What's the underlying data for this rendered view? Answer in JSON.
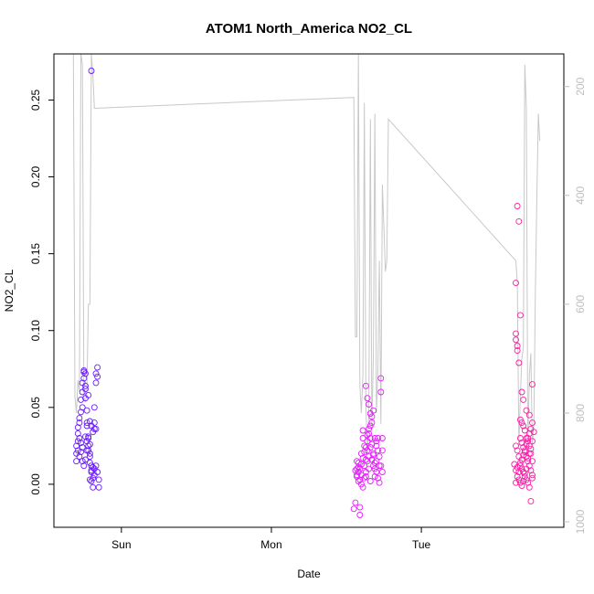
{
  "chart_data": {
    "type": "scatter",
    "title": "ATOM1 North_America NO2_CL",
    "xlabel": "Date",
    "ylabel": "NO2_CL",
    "x_axis": {
      "ticks": [
        {
          "value": 1.0,
          "label": "Sun"
        },
        {
          "value": 2.0,
          "label": "Mon"
        },
        {
          "value": 3.0,
          "label": "Tue"
        }
      ],
      "range": [
        0.55,
        3.95
      ]
    },
    "y_axis": {
      "ticks": [
        0.0,
        0.05,
        0.1,
        0.15,
        0.2,
        0.25
      ],
      "tick_labels": [
        "0.00",
        "0.05",
        "0.10",
        "0.15",
        "0.20",
        "0.25"
      ],
      "range": [
        -0.028,
        0.28
      ]
    },
    "secondary_y_axis": {
      "ticks": [
        200,
        400,
        600,
        800,
        1000
      ],
      "tick_labels": [
        "200",
        "400",
        "600",
        "800",
        "1000"
      ],
      "range": [
        1010,
        140
      ],
      "color": "#bebebe",
      "note": "pressure-like altitude axis, inverted"
    },
    "colors": {
      "group1": "#6a1bff",
      "group2": "#e61bff",
      "group3": "#ff1ba6",
      "line": "#c8c8c8"
    },
    "secondary_series": {
      "name": "",
      "color": "#c8c8c8",
      "points": [
        [
          0.68,
          140
        ],
        [
          0.69,
          770
        ],
        [
          0.7,
          800
        ],
        [
          0.71,
          740
        ],
        [
          0.72,
          760
        ],
        [
          0.73,
          140
        ],
        [
          0.74,
          160
        ],
        [
          0.75,
          770
        ],
        [
          0.76,
          780
        ],
        [
          0.77,
          760
        ],
        [
          0.78,
          600
        ],
        [
          0.79,
          600
        ],
        [
          0.8,
          140
        ],
        [
          0.81,
          180
        ],
        [
          0.82,
          240
        ],
        [
          2.55,
          220
        ],
        [
          2.56,
          660
        ],
        [
          2.57,
          660
        ],
        [
          2.58,
          140
        ],
        [
          2.59,
          750
        ],
        [
          2.6,
          800
        ],
        [
          2.61,
          730
        ],
        [
          2.62,
          230
        ],
        [
          2.63,
          790
        ],
        [
          2.64,
          870
        ],
        [
          2.65,
          800
        ],
        [
          2.66,
          260
        ],
        [
          2.67,
          830
        ],
        [
          2.68,
          690
        ],
        [
          2.69,
          250
        ],
        [
          2.7,
          800
        ],
        [
          2.71,
          720
        ],
        [
          2.72,
          520
        ],
        [
          2.73,
          820
        ],
        [
          2.74,
          380
        ],
        [
          2.75,
          460
        ],
        [
          2.76,
          540
        ],
        [
          2.77,
          520
        ],
        [
          2.78,
          260
        ],
        [
          3.63,
          520
        ],
        [
          3.64,
          560
        ],
        [
          3.65,
          860
        ],
        [
          3.66,
          770
        ],
        [
          3.67,
          700
        ],
        [
          3.68,
          680
        ],
        [
          3.69,
          160
        ],
        [
          3.7,
          240
        ],
        [
          3.71,
          860
        ],
        [
          3.72,
          730
        ],
        [
          3.73,
          690
        ],
        [
          3.74,
          860
        ],
        [
          3.75,
          820
        ],
        [
          3.76,
          580
        ],
        [
          3.77,
          400
        ],
        [
          3.78,
          250
        ],
        [
          3.79,
          300
        ]
      ]
    },
    "series": [
      {
        "name": "",
        "color": "#6a1bff",
        "points": [
          [
            0.7,
            0.02
          ],
          [
            0.71,
            0.028
          ],
          [
            0.71,
            0.033
          ],
          [
            0.72,
            0.018
          ],
          [
            0.73,
            0.021
          ],
          [
            0.72,
            0.04
          ],
          [
            0.73,
            0.055
          ],
          [
            0.74,
            0.06
          ],
          [
            0.74,
            0.066
          ],
          [
            0.75,
            0.069
          ],
          [
            0.75,
            0.073
          ],
          [
            0.76,
            0.072
          ],
          [
            0.76,
            0.062
          ],
          [
            0.76,
            0.056
          ],
          [
            0.77,
            0.048
          ],
          [
            0.77,
            0.04
          ],
          [
            0.77,
            0.038
          ],
          [
            0.78,
            0.03
          ],
          [
            0.78,
            0.025
          ],
          [
            0.78,
            0.022
          ],
          [
            0.79,
            0.018
          ],
          [
            0.79,
            0.014
          ],
          [
            0.8,
            0.008
          ],
          [
            0.8,
            0.012
          ],
          [
            0.8,
            0.002
          ],
          [
            0.81,
            -0.002
          ],
          [
            0.81,
            0.004
          ],
          [
            0.82,
            0.01
          ],
          [
            0.82,
            0.036
          ],
          [
            0.82,
            0.05
          ],
          [
            0.83,
            0.066
          ],
          [
            0.83,
            0.072
          ],
          [
            0.84,
            0.076
          ],
          [
            0.84,
            0.008
          ],
          [
            0.85,
            0.003
          ],
          [
            0.85,
            -0.002
          ],
          [
            0.8,
            0.269
          ],
          [
            0.75,
            0.074
          ],
          [
            0.78,
            0.031
          ],
          [
            0.79,
            0.026
          ],
          [
            0.73,
            0.027
          ],
          [
            0.74,
            0.015
          ],
          [
            0.72,
            0.03
          ],
          [
            0.8,
            0.038
          ],
          [
            0.81,
            0.034
          ],
          [
            0.77,
            0.022
          ],
          [
            0.76,
            0.016
          ],
          [
            0.75,
            0.012
          ],
          [
            0.71,
            0.022
          ],
          [
            0.7,
            0.025
          ],
          [
            0.73,
            0.047
          ],
          [
            0.79,
            0.041
          ],
          [
            0.82,
            0.04
          ],
          [
            0.83,
            0.036
          ],
          [
            0.84,
            0.07
          ],
          [
            0.78,
            0.058
          ],
          [
            0.76,
            0.064
          ],
          [
            0.74,
            0.05
          ],
          [
            0.71,
            0.037
          ],
          [
            0.72,
            0.043
          ],
          [
            0.79,
            0.003
          ],
          [
            0.8,
            0.009
          ],
          [
            0.81,
            0.011
          ],
          [
            0.7,
            0.015
          ],
          [
            0.74,
            0.024
          ],
          [
            0.76,
            0.031
          ],
          [
            0.77,
            0.028
          ],
          [
            0.79,
            0.02
          ],
          [
            0.83,
            0.012
          ],
          [
            0.82,
            0.006
          ]
        ]
      },
      {
        "name": "",
        "color": "#e61bff",
        "points": [
          [
            2.55,
            -0.016
          ],
          [
            2.56,
            -0.012
          ],
          [
            2.57,
            0.005
          ],
          [
            2.57,
            0.01
          ],
          [
            2.58,
            0.002
          ],
          [
            2.58,
            0.014
          ],
          [
            2.59,
            -0.015
          ],
          [
            2.59,
            -0.02
          ],
          [
            2.6,
            0.006
          ],
          [
            2.6,
            0.02
          ],
          [
            2.61,
            0.03
          ],
          [
            2.61,
            0.035
          ],
          [
            2.62,
            0.025
          ],
          [
            2.62,
            0.012
          ],
          [
            2.63,
            0.008
          ],
          [
            2.63,
            0.005
          ],
          [
            2.64,
            0.015
          ],
          [
            2.64,
            0.022
          ],
          [
            2.65,
            0.018
          ],
          [
            2.65,
            0.01
          ],
          [
            2.66,
            0.002
          ],
          [
            2.66,
            0.03
          ],
          [
            2.67,
            0.044
          ],
          [
            2.67,
            0.04
          ],
          [
            2.68,
            0.048
          ],
          [
            2.68,
            0.02
          ],
          [
            2.69,
            0.01
          ],
          [
            2.69,
            0.005
          ],
          [
            2.7,
            0.015
          ],
          [
            2.7,
            0.025
          ],
          [
            2.71,
            0.03
          ],
          [
            2.71,
            0.022
          ],
          [
            2.72,
            0.018
          ],
          [
            2.72,
            0.012
          ],
          [
            2.73,
            0.06
          ],
          [
            2.73,
            0.069
          ],
          [
            2.74,
            0.03
          ],
          [
            2.74,
            0.022
          ],
          [
            2.63,
            0.064
          ],
          [
            2.64,
            0.056
          ],
          [
            2.65,
            0.052
          ],
          [
            2.66,
            0.046
          ],
          [
            2.57,
            0.015
          ],
          [
            2.58,
            0.008
          ],
          [
            2.59,
            0.01
          ],
          [
            2.6,
            0.0
          ],
          [
            2.61,
            -0.002
          ],
          [
            2.62,
            0.004
          ],
          [
            2.63,
            0.016
          ],
          [
            2.64,
            0.028
          ],
          [
            2.65,
            0.033
          ],
          [
            2.66,
            0.038
          ],
          [
            2.67,
            0.026
          ],
          [
            2.68,
            0.019
          ],
          [
            2.69,
            0.014
          ],
          [
            2.7,
            0.008
          ],
          [
            2.71,
            0.004
          ],
          [
            2.72,
            0.001
          ],
          [
            2.73,
            0.012
          ],
          [
            2.74,
            0.008
          ],
          [
            2.56,
            0.009
          ],
          [
            2.57,
            0.006
          ],
          [
            2.58,
            0.011
          ],
          [
            2.59,
            0.003
          ],
          [
            2.6,
            0.013
          ],
          [
            2.61,
            0.017
          ],
          [
            2.62,
            0.021
          ],
          [
            2.63,
            0.024
          ],
          [
            2.64,
            0.032
          ],
          [
            2.65,
            0.036
          ],
          [
            2.66,
            0.024
          ],
          [
            2.67,
            0.016
          ],
          [
            2.68,
            0.012
          ],
          [
            2.69,
            0.03
          ],
          [
            2.7,
            0.028
          ]
        ]
      },
      {
        "name": "",
        "color": "#ff1ba6",
        "points": [
          [
            3.63,
            0.131
          ],
          [
            3.64,
            0.181
          ],
          [
            3.65,
            0.171
          ],
          [
            3.66,
            0.11
          ],
          [
            3.63,
            0.098
          ],
          [
            3.63,
            0.094
          ],
          [
            3.64,
            0.09
          ],
          [
            3.64,
            0.087
          ],
          [
            3.65,
            0.079
          ],
          [
            3.67,
            0.06
          ],
          [
            3.68,
            0.055
          ],
          [
            3.7,
            0.048
          ],
          [
            3.72,
            0.045
          ],
          [
            3.74,
            0.065
          ],
          [
            3.66,
            0.042
          ],
          [
            3.67,
            0.04
          ],
          [
            3.68,
            0.038
          ],
          [
            3.69,
            0.035
          ],
          [
            3.7,
            0.03
          ],
          [
            3.71,
            0.028
          ],
          [
            3.72,
            0.025
          ],
          [
            3.73,
            0.02
          ],
          [
            3.74,
            0.015
          ],
          [
            3.63,
            0.025
          ],
          [
            3.64,
            0.022
          ],
          [
            3.65,
            0.018
          ],
          [
            3.66,
            0.014
          ],
          [
            3.67,
            0.01
          ],
          [
            3.68,
            0.008
          ],
          [
            3.69,
            0.005
          ],
          [
            3.7,
            0.003
          ],
          [
            3.71,
            0.001
          ],
          [
            3.72,
            -0.002
          ],
          [
            3.73,
            -0.011
          ],
          [
            3.74,
            0.004
          ],
          [
            3.63,
            0.001
          ],
          [
            3.64,
            0.005
          ],
          [
            3.65,
            0.008
          ],
          [
            3.66,
            0.012
          ],
          [
            3.67,
            0.016
          ],
          [
            3.68,
            0.019
          ],
          [
            3.69,
            0.022
          ],
          [
            3.7,
            0.026
          ],
          [
            3.71,
            0.03
          ],
          [
            3.72,
            0.033
          ],
          [
            3.73,
            0.036
          ],
          [
            3.74,
            0.04
          ],
          [
            3.66,
            0.03
          ],
          [
            3.67,
            0.027
          ],
          [
            3.68,
            0.024
          ],
          [
            3.69,
            0.021
          ],
          [
            3.7,
            0.018
          ],
          [
            3.71,
            0.015
          ],
          [
            3.72,
            0.012
          ],
          [
            3.73,
            0.009
          ],
          [
            3.74,
            0.006
          ],
          [
            3.62,
            0.013
          ],
          [
            3.63,
            0.009
          ],
          [
            3.64,
            0.011
          ],
          [
            3.65,
            0.003
          ],
          [
            3.66,
            0.001
          ],
          [
            3.67,
            -0.001
          ],
          [
            3.68,
            0.002
          ],
          [
            3.69,
            0.007
          ],
          [
            3.7,
            0.01
          ],
          [
            3.71,
            0.017
          ],
          [
            3.72,
            0.02
          ],
          [
            3.73,
            0.023
          ],
          [
            3.74,
            0.028
          ],
          [
            3.75,
            0.034
          ]
        ]
      }
    ]
  }
}
